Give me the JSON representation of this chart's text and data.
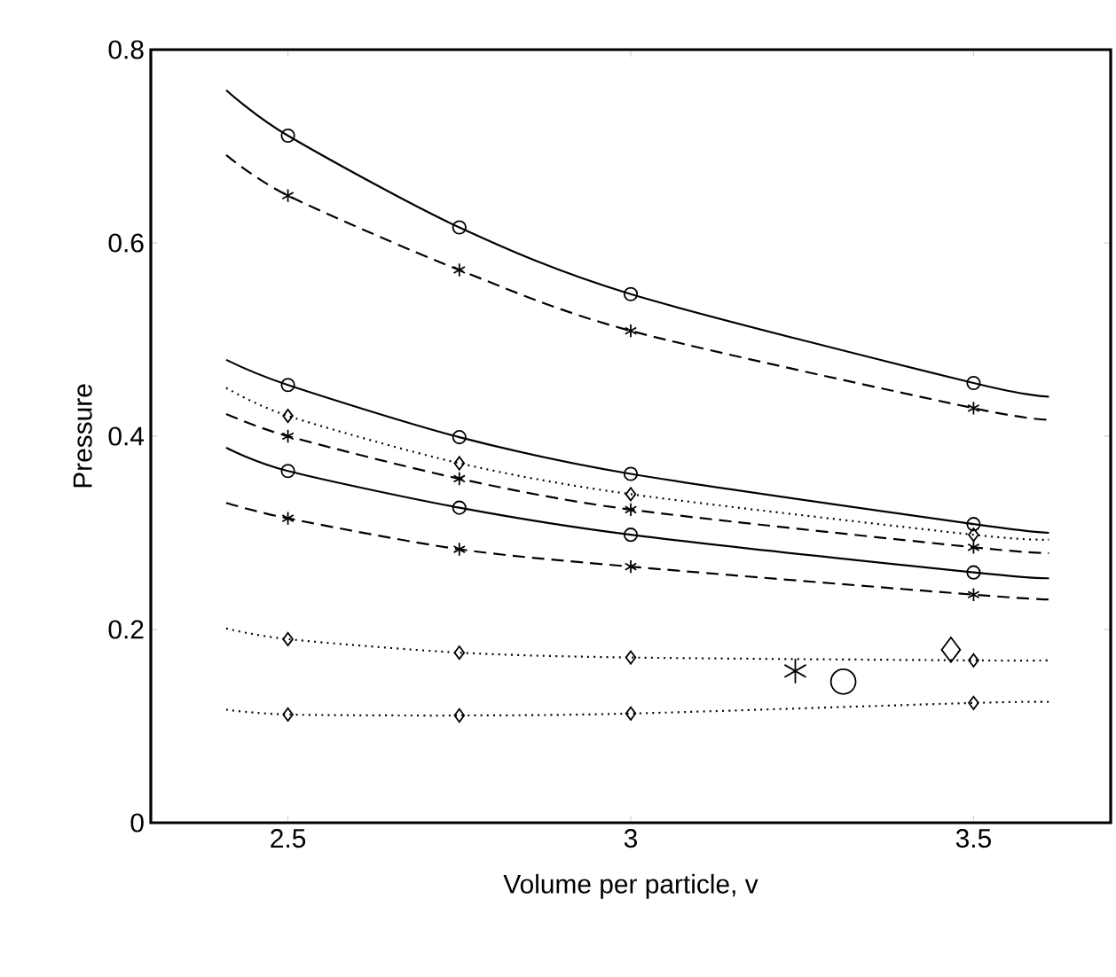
{
  "chart_data": {
    "type": "line",
    "xlabel": "Volume per particle, v",
    "ylabel": "Pressure",
    "xlim": [
      2.3,
      3.7
    ],
    "ylim": [
      0,
      0.8
    ],
    "xticks": [
      2.5,
      3,
      3.5
    ],
    "yticks": [
      0,
      0.2,
      0.4,
      0.6,
      0.8
    ],
    "grid": false,
    "x": [
      2.41,
      2.5,
      2.75,
      3,
      3.5,
      3.61
    ],
    "series": [
      {
        "line_style": "solid",
        "color": "#000000",
        "values": [
          0.758,
          0.711,
          0.616,
          0.547,
          0.455,
          0.441
        ]
      },
      {
        "line_style": "dashed",
        "color": "#000000",
        "values": [
          0.691,
          0.649,
          0.572,
          0.509,
          0.429,
          0.417
        ]
      },
      {
        "line_style": "solid",
        "color": "#000000",
        "values": [
          0.479,
          0.453,
          0.399,
          0.361,
          0.309,
          0.3
        ]
      },
      {
        "line_style": "dotted",
        "color": "#000000",
        "values": [
          0.45,
          0.421,
          0.372,
          0.34,
          0.298,
          0.293
        ]
      },
      {
        "line_style": "dashed",
        "color": "#000000",
        "values": [
          0.423,
          0.4,
          0.356,
          0.324,
          0.285,
          0.279
        ]
      },
      {
        "line_style": "solid",
        "color": "#000000",
        "values": [
          0.388,
          0.364,
          0.326,
          0.298,
          0.259,
          0.253
        ]
      },
      {
        "line_style": "dashed",
        "color": "#000000",
        "values": [
          0.331,
          0.315,
          0.283,
          0.265,
          0.236,
          0.231
        ]
      },
      {
        "line_style": "dotted",
        "color": "#000000",
        "values": [
          0.201,
          0.19,
          0.176,
          0.171,
          0.168,
          0.168
        ]
      },
      {
        "line_style": "dotted",
        "color": "#000000",
        "values": [
          0.117,
          0.112,
          0.111,
          0.113,
          0.124,
          0.125
        ]
      },
      {
        "type": "scatter",
        "marker": "circle",
        "color": "#000000",
        "x": [
          2.5,
          2.75,
          3,
          3.5
        ],
        "values": [
          0.711,
          0.616,
          0.547,
          0.455
        ]
      },
      {
        "type": "scatter",
        "marker": "cross",
        "color": "#000000",
        "x": [
          2.5,
          2.75,
          3,
          3.5
        ],
        "values": [
          0.649,
          0.572,
          0.509,
          0.429
        ]
      },
      {
        "type": "scatter",
        "marker": "circle",
        "color": "#000000",
        "x": [
          2.5,
          2.75,
          3,
          3.5
        ],
        "values": [
          0.453,
          0.399,
          0.361,
          0.309
        ]
      },
      {
        "type": "scatter",
        "marker": "diamond",
        "color": "#000000",
        "x": [
          2.5,
          2.75,
          3,
          3.5
        ],
        "values": [
          0.421,
          0.372,
          0.34,
          0.298
        ]
      },
      {
        "type": "scatter",
        "marker": "cross",
        "color": "#000000",
        "x": [
          2.5,
          2.75,
          3,
          3.5
        ],
        "values": [
          0.4,
          0.356,
          0.324,
          0.285
        ]
      },
      {
        "type": "scatter",
        "marker": "circle",
        "color": "#000000",
        "x": [
          2.5,
          2.75,
          3,
          3.5
        ],
        "values": [
          0.364,
          0.326,
          0.298,
          0.259
        ]
      },
      {
        "type": "scatter",
        "marker": "cross",
        "color": "#000000",
        "x": [
          2.5,
          2.75,
          3,
          3.5
        ],
        "values": [
          0.315,
          0.283,
          0.265,
          0.236
        ]
      },
      {
        "type": "scatter",
        "marker": "diamond",
        "color": "#000000",
        "x": [
          2.5,
          2.75,
          3,
          3.5
        ],
        "values": [
          0.19,
          0.176,
          0.171,
          0.168
        ]
      },
      {
        "type": "scatter",
        "marker": "diamond",
        "color": "#000000",
        "x": [
          2.5,
          2.75,
          3,
          3.5
        ],
        "values": [
          0.112,
          0.111,
          0.113,
          0.124
        ]
      },
      {
        "type": "scatter",
        "marker": "cross",
        "color": "#000000",
        "x": [
          3.24
        ],
        "values": [
          0.157
        ]
      },
      {
        "type": "scatter",
        "marker": "circle",
        "color": "#000000",
        "x": [
          3.31
        ],
        "values": [
          0.146
        ]
      },
      {
        "type": "scatter",
        "marker": "diamond",
        "color": "#000000",
        "x": [
          3.467
        ],
        "values": [
          0.179
        ]
      }
    ]
  }
}
